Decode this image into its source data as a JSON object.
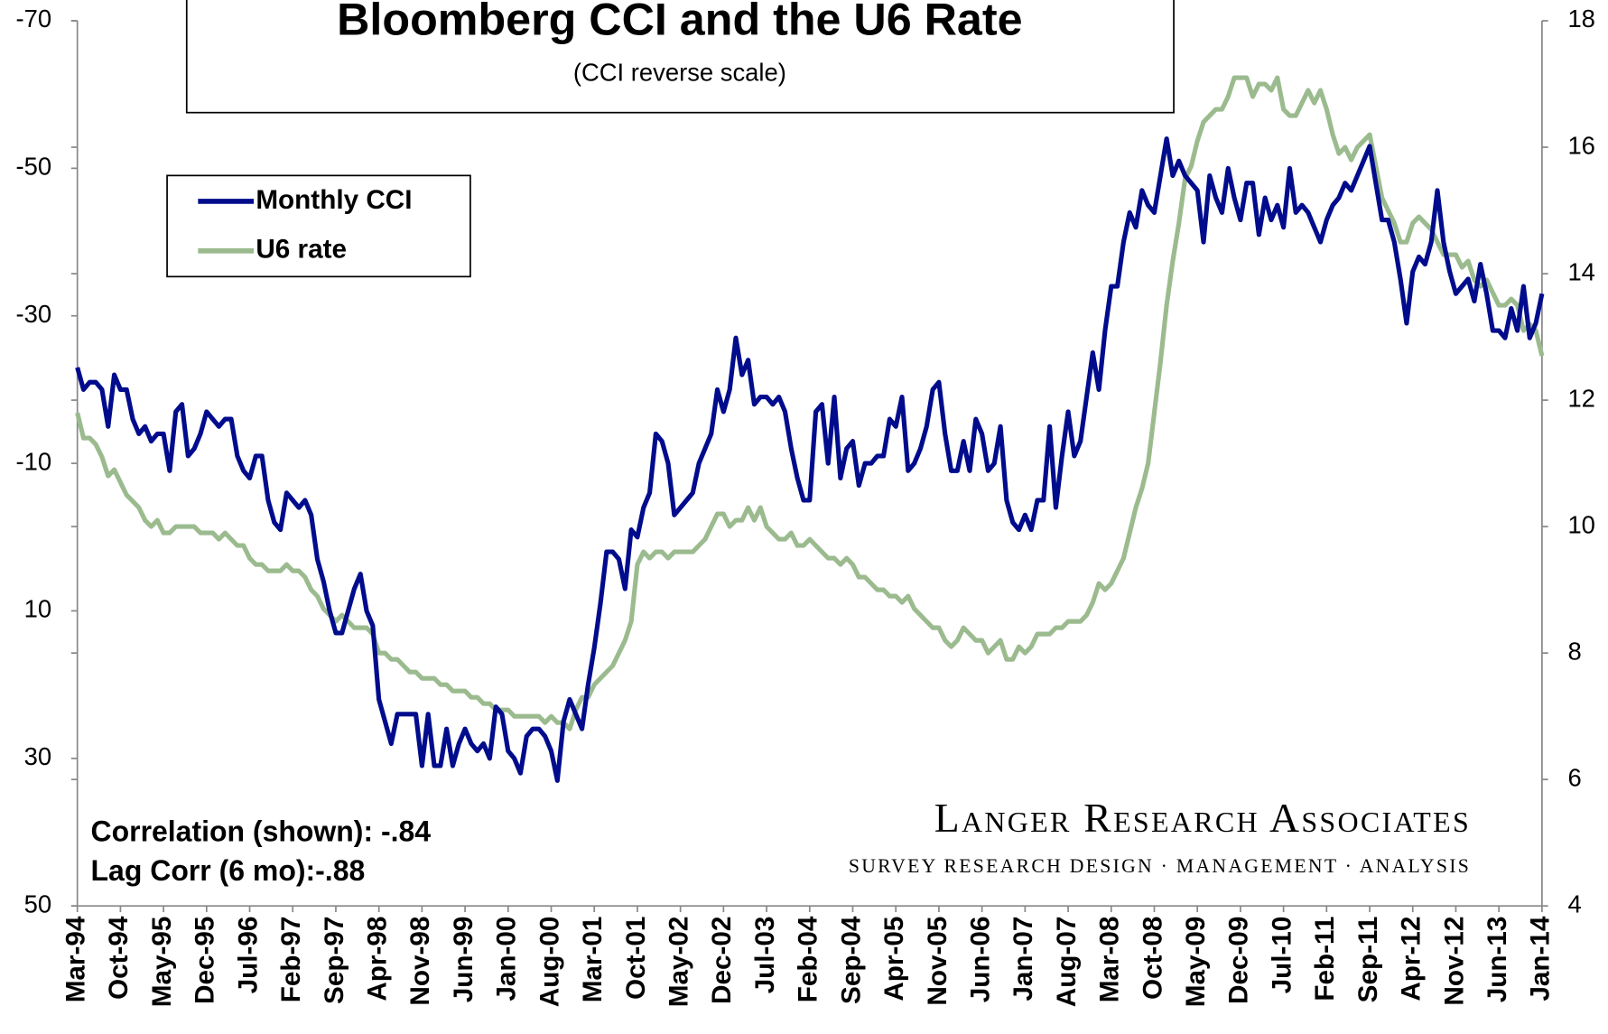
{
  "chart_data": {
    "type": "line",
    "title": "Bloomberg CCI and the U6 Rate",
    "subtitle": "(CCI reverse scale)",
    "annotations": [
      "Correlation (shown): -.84",
      "Lag Corr (6 mo):-.88"
    ],
    "branding": {
      "name": "Langer Research Associates",
      "tagline": "SURVEY RESEARCH DESIGN · MANAGEMENT · ANALYSIS"
    },
    "categories": [
      "Mar-94",
      null,
      null,
      null,
      null,
      null,
      null,
      "Oct-94",
      null,
      null,
      null,
      null,
      null,
      null,
      "May-95",
      null,
      null,
      null,
      null,
      null,
      null,
      "Dec-95",
      null,
      null,
      null,
      null,
      null,
      null,
      "Jul-96",
      null,
      null,
      null,
      null,
      null,
      null,
      "Feb-97",
      null,
      null,
      null,
      null,
      null,
      null,
      "Sep-97",
      null,
      null,
      null,
      null,
      null,
      null,
      "Apr-98",
      null,
      null,
      null,
      null,
      null,
      null,
      "Nov-98",
      null,
      null,
      null,
      null,
      null,
      null,
      "Jun-99",
      null,
      null,
      null,
      null,
      null,
      null,
      "Jan-00",
      null,
      null,
      null,
      null,
      null,
      null,
      "Aug-00",
      null,
      null,
      null,
      null,
      null,
      null,
      "Mar-01",
      null,
      null,
      null,
      null,
      null,
      null,
      "Oct-01",
      null,
      null,
      null,
      null,
      null,
      null,
      "May-02",
      null,
      null,
      null,
      null,
      null,
      null,
      "Dec-02",
      null,
      null,
      null,
      null,
      null,
      null,
      "Jul-03",
      null,
      null,
      null,
      null,
      null,
      null,
      "Feb-04",
      null,
      null,
      null,
      null,
      null,
      null,
      "Sep-04",
      null,
      null,
      null,
      null,
      null,
      null,
      "Apr-05",
      null,
      null,
      null,
      null,
      null,
      null,
      "Nov-05",
      null,
      null,
      null,
      null,
      null,
      null,
      "Jun-06",
      null,
      null,
      null,
      null,
      null,
      null,
      "Jan-07",
      null,
      null,
      null,
      null,
      null,
      null,
      "Aug-07",
      null,
      null,
      null,
      null,
      null,
      null,
      "Mar-08",
      null,
      null,
      null,
      null,
      null,
      null,
      "Oct-08",
      null,
      null,
      null,
      null,
      null,
      null,
      "May-09",
      null,
      null,
      null,
      null,
      null,
      null,
      "Dec-09",
      null,
      null,
      null,
      null,
      null,
      null,
      "Jul-10",
      null,
      null,
      null,
      null,
      null,
      null,
      "Feb-11",
      null,
      null,
      null,
      null,
      null,
      null,
      "Sep-11",
      null,
      null,
      null,
      null,
      null,
      null,
      "Apr-12",
      null,
      null,
      null,
      null,
      null,
      null,
      "Nov-12",
      null,
      null,
      null,
      null,
      null,
      null,
      "Jun-13",
      null,
      null,
      null,
      null,
      null,
      null,
      "Jan-14"
    ],
    "series": [
      {
        "name": "Monthly CCI",
        "color": "#000c8c",
        "axis": "y",
        "values": [
          -23,
          -20,
          -21,
          -21,
          -20,
          -15,
          -22,
          -20,
          -20,
          -16,
          -14,
          -15,
          -13,
          -14,
          -14,
          -9,
          -17,
          -18,
          -11,
          -12,
          -14,
          -17,
          -16,
          -15,
          -16,
          -16,
          -11,
          -9,
          -8,
          -11,
          -11,
          -5,
          -2,
          -1,
          -6,
          -5,
          -4,
          -5,
          -3,
          3,
          6,
          10,
          13,
          13,
          10,
          7,
          5,
          10,
          12,
          22,
          25,
          28,
          24,
          24,
          24,
          24,
          31,
          24,
          31,
          31,
          26,
          31,
          28,
          26,
          28,
          29,
          28,
          30,
          23,
          24,
          29,
          30,
          32,
          27,
          26,
          26,
          27,
          29,
          33,
          25,
          22,
          24,
          26,
          20,
          15,
          9,
          2,
          2,
          3,
          7,
          -1,
          0,
          -4,
          -6,
          -14,
          -13,
          -10,
          -3,
          -4,
          -5,
          -6,
          -10,
          -12,
          -14,
          -20,
          -17,
          -20,
          -27,
          -22,
          -24,
          -18,
          -19,
          -19,
          -18,
          -19,
          -17,
          -12,
          -8,
          -5,
          -5,
          -17,
          -18,
          -10,
          -19,
          -8,
          -12,
          -13,
          -7,
          -10,
          -10,
          -11,
          -11,
          -16,
          -15,
          -19,
          -9,
          -10,
          -12,
          -15,
          -20,
          -21,
          -14,
          -9,
          -9,
          -13,
          -9,
          -16,
          -14,
          -9,
          -10,
          -15,
          -5,
          -2,
          -1,
          -3,
          -1,
          -5,
          -5,
          -15,
          -4,
          -11,
          -17,
          -11,
          -13,
          -19,
          -25,
          -20,
          -28,
          -34,
          -34,
          -40,
          -44,
          -42,
          -47,
          -45,
          -44,
          -49,
          -54,
          -49,
          -51,
          -49,
          -48,
          -47,
          -40,
          -49,
          -46,
          -44,
          -50,
          -46,
          -43,
          -48,
          -48,
          -41,
          -46,
          -43,
          -45,
          -42,
          -50,
          -44,
          -45,
          -44,
          -42,
          -40,
          -43,
          -45,
          -46,
          -48,
          -47,
          -49,
          -51,
          -53,
          -48,
          -43,
          -43,
          -40,
          -35,
          -29,
          -36,
          -38,
          -37,
          -40,
          -47,
          -40,
          -36,
          -33,
          -34,
          -35,
          -32,
          -37,
          -33,
          -28,
          -28,
          -27,
          -31,
          -28,
          -34,
          -27,
          -29,
          -33
        ]
      },
      {
        "name": "U6 rate",
        "color": "#9bbb8f",
        "axis": "y2",
        "values": [
          11.8,
          11.4,
          11.4,
          11.3,
          11.1,
          10.8,
          10.9,
          10.7,
          10.5,
          10.4,
          10.3,
          10.1,
          10.0,
          10.1,
          9.9,
          9.9,
          10.0,
          10.0,
          10.0,
          10.0,
          9.9,
          9.9,
          9.9,
          9.8,
          9.9,
          9.8,
          9.7,
          9.7,
          9.5,
          9.4,
          9.4,
          9.3,
          9.3,
          9.3,
          9.4,
          9.3,
          9.3,
          9.2,
          9.0,
          8.9,
          8.7,
          8.6,
          8.5,
          8.6,
          8.5,
          8.4,
          8.4,
          8.4,
          8.3,
          8.0,
          8.0,
          7.9,
          7.9,
          7.8,
          7.7,
          7.7,
          7.6,
          7.6,
          7.6,
          7.5,
          7.5,
          7.4,
          7.4,
          7.4,
          7.3,
          7.3,
          7.2,
          7.2,
          7.1,
          7.1,
          7.1,
          7.0,
          7.0,
          7.0,
          7.0,
          7.0,
          6.9,
          7.0,
          6.9,
          6.9,
          6.8,
          7.1,
          7.3,
          7.3,
          7.5,
          7.6,
          7.7,
          7.8,
          8.0,
          8.2,
          8.5,
          9.4,
          9.6,
          9.5,
          9.6,
          9.6,
          9.5,
          9.6,
          9.6,
          9.6,
          9.6,
          9.7,
          9.8,
          10.0,
          10.2,
          10.2,
          10.0,
          10.1,
          10.1,
          10.3,
          10.1,
          10.3,
          10.0,
          9.9,
          9.8,
          9.8,
          9.9,
          9.7,
          9.7,
          9.8,
          9.7,
          9.6,
          9.5,
          9.5,
          9.4,
          9.5,
          9.4,
          9.2,
          9.2,
          9.1,
          9.0,
          9.0,
          8.9,
          8.9,
          8.8,
          8.9,
          8.7,
          8.6,
          8.5,
          8.4,
          8.4,
          8.2,
          8.1,
          8.2,
          8.4,
          8.3,
          8.2,
          8.2,
          8.0,
          8.1,
          8.2,
          7.9,
          7.9,
          8.1,
          8.0,
          8.1,
          8.3,
          8.3,
          8.3,
          8.4,
          8.4,
          8.5,
          8.5,
          8.5,
          8.6,
          8.8,
          9.1,
          9.0,
          9.1,
          9.3,
          9.5,
          9.9,
          10.3,
          10.6,
          11.0,
          11.8,
          12.6,
          13.5,
          14.2,
          14.8,
          15.5,
          15.7,
          16.1,
          16.4,
          16.5,
          16.6,
          16.6,
          16.8,
          17.1,
          17.1,
          17.1,
          16.8,
          17.0,
          17.0,
          16.9,
          17.1,
          16.6,
          16.5,
          16.5,
          16.7,
          16.9,
          16.7,
          16.9,
          16.6,
          16.2,
          15.9,
          16.0,
          15.8,
          16.0,
          16.1,
          16.2,
          15.7,
          15.2,
          15.0,
          14.8,
          14.5,
          14.5,
          14.8,
          14.9,
          14.8,
          14.7,
          14.5,
          14.3,
          14.3,
          14.3,
          14.1,
          14.2,
          13.9,
          13.8,
          13.9,
          13.7,
          13.5,
          13.5,
          13.6,
          13.5,
          13.1,
          13.2,
          13.1,
          12.7
        ]
      }
    ],
    "ylim": [
      -70,
      50
    ],
    "yticks": [
      -70,
      -50,
      -30,
      -10,
      10,
      30,
      50
    ],
    "y_reverse": true,
    "y2lim": [
      4,
      18
    ],
    "y2ticks": [
      4,
      6,
      8,
      10,
      12,
      14,
      16,
      18
    ],
    "grid": false,
    "legend": "upper left"
  }
}
